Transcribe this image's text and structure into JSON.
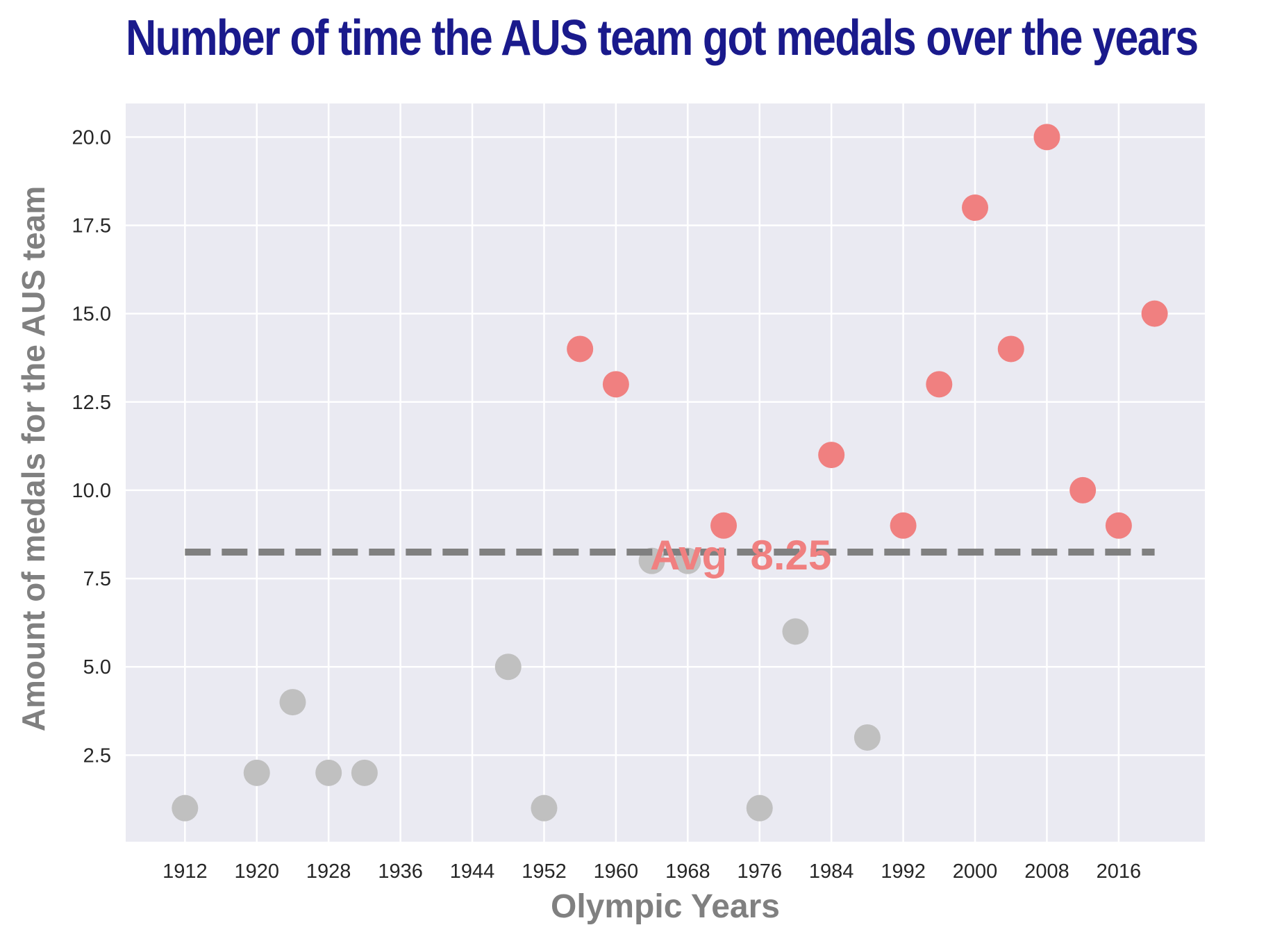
{
  "chart_data": {
    "type": "scatter",
    "title": "Number of time the AUS team got medals over the years",
    "xlabel": "Olympic Years",
    "ylabel": "Amount of medals for the AUS team",
    "xlim": [
      1905.4,
      2025.6
    ],
    "ylim": [
      0.05,
      20.95
    ],
    "x_ticks": [
      1912,
      1920,
      1928,
      1936,
      1944,
      1952,
      1960,
      1968,
      1976,
      1984,
      1992,
      2000,
      2008,
      2016
    ],
    "y_ticks": [
      2.5,
      5.0,
      7.5,
      10.0,
      12.5,
      15.0,
      17.5,
      20.0
    ],
    "y_tick_labels": [
      "2.5",
      "5.0",
      "7.5",
      "10.0",
      "12.5",
      "15.0",
      "17.5",
      "20.0"
    ],
    "grid": true,
    "average": {
      "value": 8.25,
      "label": "Avg  8.25",
      "x_range": [
        1912,
        2020
      ]
    },
    "colors": {
      "above_average": "#f08080",
      "below_average": "#c0c0c0",
      "average_line": "#808080",
      "title": "#1a1a8c",
      "plot_background": "#eaeaf2",
      "grid": "#ffffff"
    },
    "points": [
      {
        "x": 1912,
        "y": 1
      },
      {
        "x": 1920,
        "y": 2
      },
      {
        "x": 1924,
        "y": 4
      },
      {
        "x": 1928,
        "y": 2
      },
      {
        "x": 1932,
        "y": 2
      },
      {
        "x": 1948,
        "y": 5
      },
      {
        "x": 1952,
        "y": 1
      },
      {
        "x": 1956,
        "y": 14
      },
      {
        "x": 1960,
        "y": 13
      },
      {
        "x": 1964,
        "y": 8
      },
      {
        "x": 1968,
        "y": 8
      },
      {
        "x": 1972,
        "y": 9
      },
      {
        "x": 1976,
        "y": 1
      },
      {
        "x": 1980,
        "y": 6
      },
      {
        "x": 1984,
        "y": 11
      },
      {
        "x": 1988,
        "y": 3
      },
      {
        "x": 1992,
        "y": 9
      },
      {
        "x": 1996,
        "y": 13
      },
      {
        "x": 2000,
        "y": 18
      },
      {
        "x": 2004,
        "y": 14
      },
      {
        "x": 2008,
        "y": 20
      },
      {
        "x": 2012,
        "y": 10
      },
      {
        "x": 2016,
        "y": 9
      },
      {
        "x": 2020,
        "y": 15
      }
    ]
  }
}
